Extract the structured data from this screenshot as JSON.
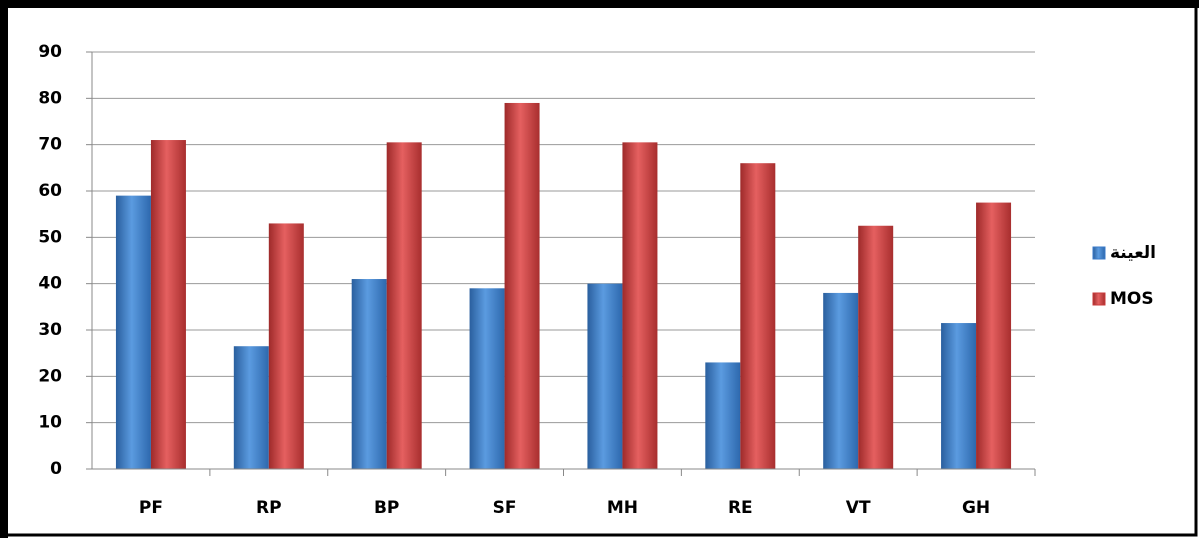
{
  "chart_data": {
    "type": "bar",
    "categories": [
      "PF",
      "RP",
      "BP",
      "SF",
      "MH",
      "RE",
      "VT",
      "GH"
    ],
    "series": [
      {
        "name": "العينة",
        "color": "#3a7ac8",
        "values": [
          59,
          26.5,
          41,
          39,
          40,
          23,
          38,
          31.5
        ]
      },
      {
        "name": "MOS",
        "color": "#c83a3a",
        "values": [
          71,
          53,
          70.5,
          79,
          70.5,
          66,
          52.5,
          57.5
        ]
      }
    ],
    "ylim": [
      0,
      90
    ],
    "yticks": [
      0,
      10,
      20,
      30,
      40,
      50,
      60,
      70,
      80,
      90
    ],
    "grid": true,
    "legend": "right"
  }
}
